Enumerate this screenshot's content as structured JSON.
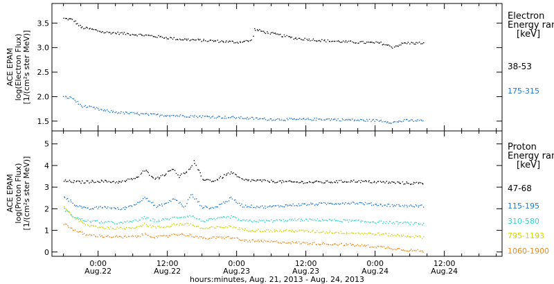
{
  "chart_data": [
    {
      "type": "scatter",
      "panel": "electron",
      "ylabel_lines": [
        "ACE EPAM",
        "log(Electron Flux)",
        "[1/(cm²s ster MeV)]"
      ],
      "ylim": [
        1.3,
        3.9
      ],
      "yticks": [
        1.5,
        2.0,
        2.5,
        3.0,
        3.5
      ],
      "ytick_labels": [
        "1.5",
        "2.0",
        "2.5",
        "3.0",
        "3.5"
      ],
      "legend_title": [
        "Electron",
        "Energy ranges",
        "[keV]"
      ],
      "series": [
        {
          "name": "38-53",
          "color": "#000000",
          "x": [
            0,
            3,
            6,
            10,
            14,
            20,
            30,
            40,
            50,
            60,
            65,
            66,
            70,
            80,
            90,
            100,
            110,
            114,
            118,
            125
          ],
          "y": [
            3.6,
            3.58,
            3.42,
            3.38,
            3.32,
            3.3,
            3.25,
            3.18,
            3.15,
            3.12,
            3.15,
            3.38,
            3.32,
            3.2,
            3.15,
            3.12,
            3.1,
            3.02,
            3.1,
            3.1
          ]
        },
        {
          "name": "175-315",
          "color": "#1e78d2",
          "x": [
            0,
            3,
            6,
            10,
            14,
            20,
            30,
            40,
            50,
            60,
            70,
            80,
            90,
            100,
            110,
            114,
            118,
            125
          ],
          "y": [
            2.0,
            1.98,
            1.82,
            1.78,
            1.72,
            1.68,
            1.64,
            1.62,
            1.6,
            1.58,
            1.55,
            1.54,
            1.55,
            1.53,
            1.52,
            1.48,
            1.52,
            1.52
          ]
        }
      ]
    },
    {
      "type": "scatter",
      "panel": "proton",
      "ylabel_lines": [
        "ACE EPAM",
        "log(Proton Flux)",
        "[1/(cm²s ster MeV)]"
      ],
      "ylim": [
        -0.2,
        5.6
      ],
      "yticks": [
        0,
        1,
        2,
        3,
        4,
        5
      ],
      "ytick_labels": [
        "0",
        "1",
        "2",
        "3",
        "4",
        "5"
      ],
      "legend_title": [
        "Proton",
        "Energy ranges",
        "[keV]"
      ],
      "series": [
        {
          "name": "47-68",
          "color": "#000000",
          "x": [
            0,
            6,
            12,
            20,
            26,
            28,
            32,
            36,
            38,
            40,
            44,
            45,
            48,
            52,
            58,
            62,
            70,
            80,
            90,
            100,
            110,
            120,
            125
          ],
          "y": [
            3.3,
            3.25,
            3.3,
            3.25,
            3.5,
            3.8,
            3.4,
            3.7,
            3.9,
            3.5,
            3.9,
            4.2,
            3.4,
            3.3,
            3.7,
            3.35,
            3.3,
            3.25,
            3.25,
            3.3,
            3.25,
            3.2,
            3.2
          ]
        },
        {
          "name": "115-195",
          "color": "#1e78d2",
          "x": [
            0,
            4,
            8,
            14,
            20,
            26,
            28,
            32,
            36,
            38,
            42,
            44,
            48,
            52,
            58,
            62,
            70,
            80,
            90,
            100,
            110,
            120,
            125
          ],
          "y": [
            2.6,
            2.2,
            2.0,
            2.1,
            2.0,
            2.3,
            2.6,
            2.1,
            2.3,
            2.5,
            2.1,
            2.7,
            2.1,
            2.05,
            2.5,
            2.15,
            2.1,
            2.2,
            2.25,
            2.3,
            2.2,
            2.15,
            2.15
          ]
        },
        {
          "name": "310-580",
          "color": "#30d8c8",
          "x": [
            0,
            4,
            8,
            14,
            20,
            26,
            28,
            32,
            36,
            38,
            44,
            48,
            58,
            62,
            70,
            80,
            90,
            100,
            110,
            120,
            125
          ],
          "y": [
            2.0,
            1.6,
            1.45,
            1.4,
            1.35,
            1.5,
            1.6,
            1.45,
            1.55,
            1.6,
            1.7,
            1.45,
            1.65,
            1.45,
            1.45,
            1.5,
            1.5,
            1.45,
            1.4,
            1.35,
            1.3
          ]
        },
        {
          "name": "795-1193",
          "color": "#ccd800",
          "x": [
            0,
            4,
            8,
            14,
            20,
            26,
            28,
            32,
            36,
            38,
            44,
            48,
            58,
            62,
            70,
            80,
            90,
            100,
            110,
            120,
            125
          ],
          "y": [
            2.1,
            1.55,
            1.25,
            1.15,
            1.1,
            1.2,
            1.3,
            1.15,
            1.2,
            1.3,
            1.3,
            1.1,
            1.2,
            1.05,
            1.0,
            1.0,
            0.95,
            0.9,
            0.85,
            0.75,
            0.7
          ]
        },
        {
          "name": "1060-1900",
          "color": "#f08c1e",
          "x": [
            0,
            4,
            8,
            14,
            20,
            26,
            28,
            32,
            36,
            38,
            44,
            48,
            58,
            62,
            70,
            80,
            90,
            100,
            110,
            120,
            125
          ],
          "y": [
            1.35,
            1.0,
            0.8,
            0.75,
            0.7,
            0.75,
            0.85,
            0.7,
            0.75,
            0.85,
            0.8,
            0.65,
            0.7,
            0.55,
            0.5,
            0.45,
            0.4,
            0.35,
            0.25,
            0.1,
            0.05
          ]
        }
      ]
    }
  ],
  "xaxis": {
    "xlim": [
      -4,
      152
    ],
    "major_ticks": [
      12,
      36,
      60,
      84,
      108,
      132
    ],
    "tick_labels": [
      {
        "time": "0:00",
        "date": "Aug.22"
      },
      {
        "time": "12:00",
        "date": "Aug.22"
      },
      {
        "time": "0:00",
        "date": "Aug.23"
      },
      {
        "time": "12:00",
        "date": "Aug.23"
      },
      {
        "time": "0:00",
        "date": "Aug.24"
      },
      {
        "time": "12:00",
        "date": "Aug.24"
      }
    ],
    "xlabel": "hours:minutes, Aug. 21, 2013 - Aug. 24, 2013"
  }
}
